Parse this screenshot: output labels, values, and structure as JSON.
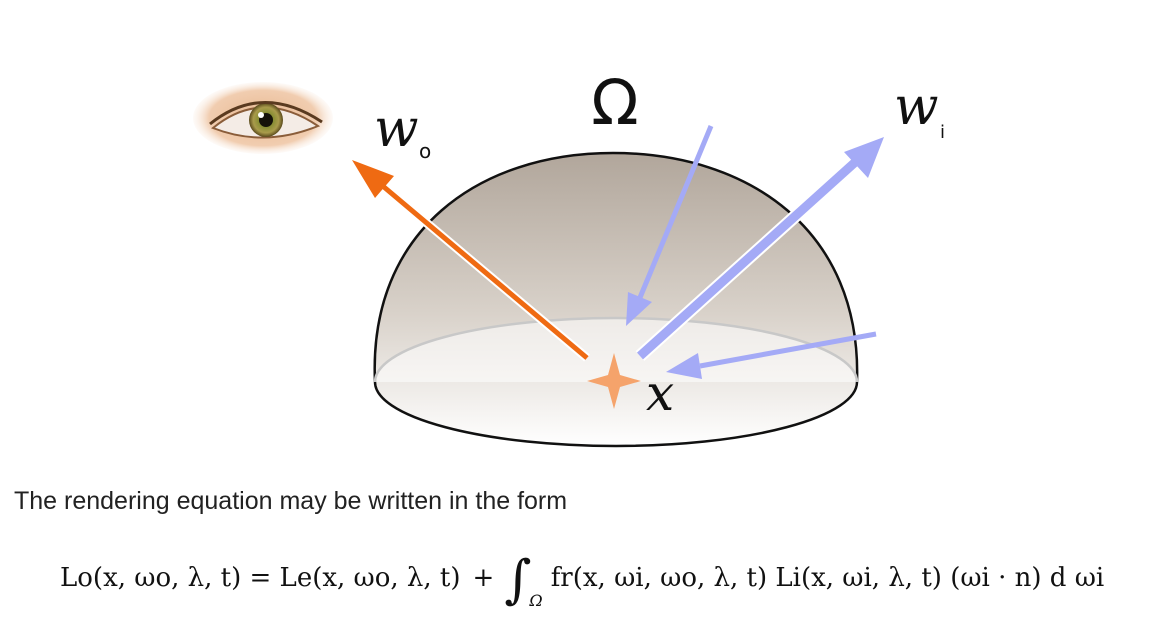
{
  "diagram": {
    "hemisphere_label": "Ω",
    "outgoing_label": "w",
    "outgoing_subscript": "o",
    "incoming_label": "w",
    "incoming_subscript": "i",
    "point_label": "x",
    "colors": {
      "outgoing_ray": "#ef6a12",
      "incoming_rays": "#a4aaf6",
      "star": "#f5a36b",
      "dome_top": "#b1a69b",
      "dome_bottom": "#ffffff"
    },
    "icons": [
      "eye-icon",
      "star-icon"
    ]
  },
  "caption": "The rendering equation may be written in the form",
  "equation": {
    "lhs": "Lo(x, ωo, λ, t) = Le(x, ωo, λ, t)",
    "plus": "+",
    "integral_sign": "∫",
    "integral_domain": "Ω",
    "integrand": "fr(x, ωi, ωo, λ, t) Li(x, ωi, λ, t) (ωi · n) d ωi"
  }
}
